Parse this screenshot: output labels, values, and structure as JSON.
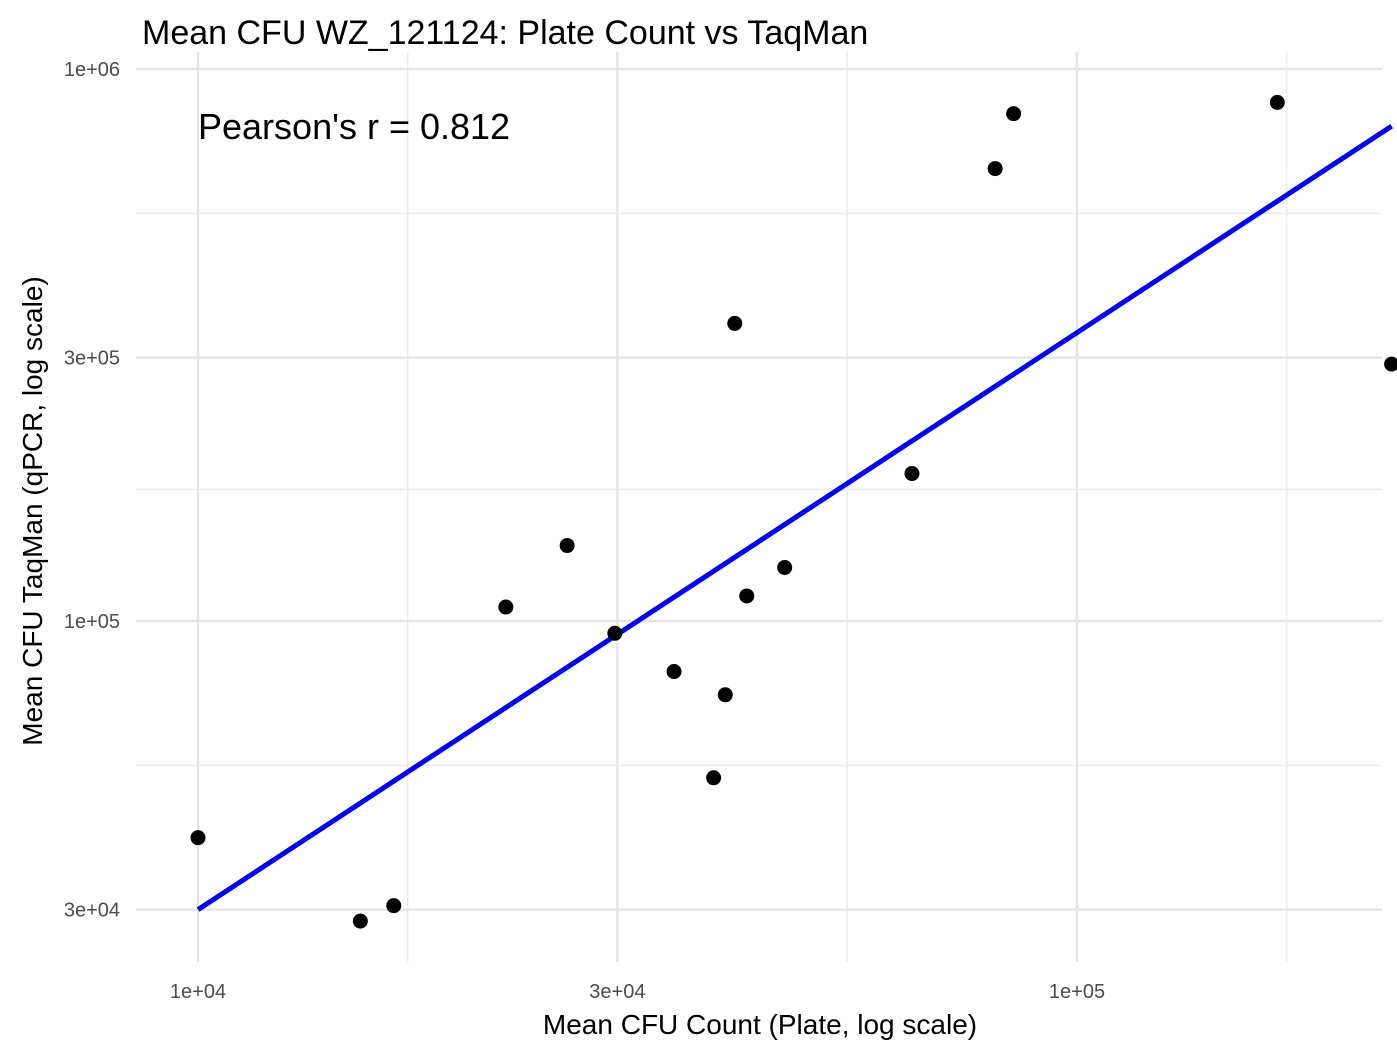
{
  "chart_data": {
    "type": "scatter",
    "title": "Mean CFU WZ_121124: Plate Count vs TaqMan",
    "xlabel": "Mean CFU Count (Plate, log scale)",
    "ylabel": "Mean CFU TaqMan (qPCR, log scale)",
    "x_scale": "log10",
    "y_scale": "log10",
    "xlim": [
      8800,
      232000
    ],
    "ylim": [
      25000,
      1000000
    ],
    "x_ticks": [
      10000,
      30000,
      100000
    ],
    "x_tick_labels": [
      "1e+04",
      "3e+04",
      "1e+05"
    ],
    "x_minor_ticks": [
      17320,
      54770,
      173200
    ],
    "y_ticks": [
      30000,
      100000,
      300000,
      1000000
    ],
    "y_tick_labels": [
      "3e+04",
      "1e+05",
      "3e+05",
      "1e+06"
    ],
    "y_minor_ticks": [
      54770,
      173200,
      547700
    ],
    "grid": true,
    "point_color": "#000000",
    "line_color": "#0000ff",
    "points": [
      {
        "x": 10000,
        "y": 40500
      },
      {
        "x": 15300,
        "y": 28600
      },
      {
        "x": 16700,
        "y": 30500
      },
      {
        "x": 22400,
        "y": 106000
      },
      {
        "x": 26300,
        "y": 137000
      },
      {
        "x": 29800,
        "y": 95000
      },
      {
        "x": 34800,
        "y": 81000
      },
      {
        "x": 38600,
        "y": 52000
      },
      {
        "x": 39800,
        "y": 73500
      },
      {
        "x": 40800,
        "y": 346000
      },
      {
        "x": 42100,
        "y": 111000
      },
      {
        "x": 46500,
        "y": 125000
      },
      {
        "x": 64900,
        "y": 185000
      },
      {
        "x": 80700,
        "y": 660000
      },
      {
        "x": 84700,
        "y": 830000
      },
      {
        "x": 169000,
        "y": 870000
      },
      {
        "x": 228000,
        "y": 292000
      }
    ],
    "fit_line": {
      "x": [
        10000,
        228000
      ],
      "y": [
        30000,
        788000
      ]
    },
    "annotation": "Pearson's r = 0.812"
  }
}
